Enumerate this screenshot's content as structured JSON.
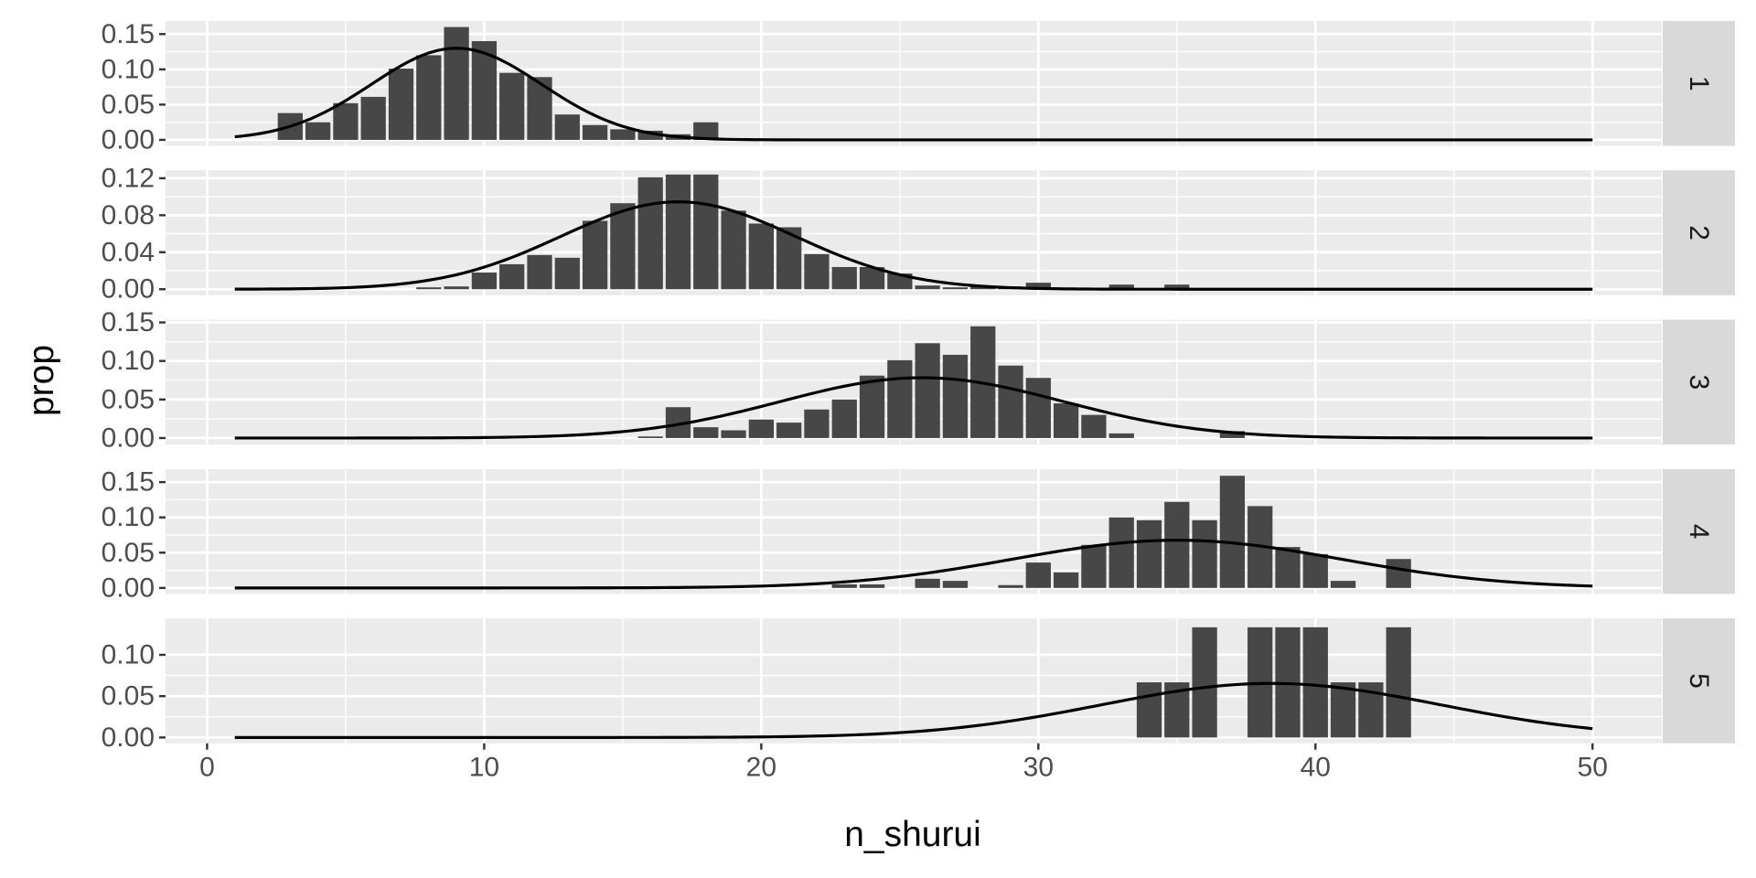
{
  "chart_data": {
    "type": "bar",
    "xlabel": "n_shurui",
    "ylabel": "prop",
    "xlim": [
      -1.5,
      52.5
    ],
    "x_ticks": [
      0,
      10,
      20,
      30,
      40,
      50
    ],
    "grid": true,
    "colors": {
      "panel_background": "#ebebeb",
      "grid": "#ffffff",
      "bar": "#474747",
      "curve": "#000000",
      "strip": "#d9d9d9",
      "tick_text": "#4d4d4d"
    },
    "panels": [
      {
        "strip_label": "1",
        "ylim": [
          -0.0085,
          0.1685
        ],
        "y_ticks": [
          0.0,
          0.05,
          0.1,
          0.15
        ],
        "y_tick_labels": [
          "0.00",
          "0.05",
          "0.10",
          "0.15"
        ],
        "bars": {
          "x": [
            3,
            4,
            5,
            6,
            7,
            8,
            9,
            10,
            11,
            12,
            13,
            14,
            15,
            16,
            17,
            18
          ],
          "values": [
            0.038,
            0.025,
            0.052,
            0.061,
            0.101,
            0.12,
            0.16,
            0.14,
            0.095,
            0.089,
            0.036,
            0.021,
            0.015,
            0.013,
            0.008,
            0.025
          ]
        },
        "curve": {
          "mean": 9.0,
          "sd": 3.07
        }
      },
      {
        "strip_label": "2",
        "ylim": [
          -0.0065,
          0.1285
        ],
        "y_ticks": [
          0.0,
          0.04,
          0.08,
          0.12
        ],
        "y_tick_labels": [
          "0.00",
          "0.04",
          "0.08",
          "0.12"
        ],
        "bars": {
          "x": [
            8,
            9,
            10,
            11,
            12,
            13,
            14,
            15,
            16,
            17,
            18,
            19,
            20,
            21,
            22,
            23,
            24,
            25,
            26,
            27,
            28,
            29,
            30,
            33,
            35
          ],
          "values": [
            0.002,
            0.003,
            0.018,
            0.027,
            0.037,
            0.034,
            0.074,
            0.093,
            0.121,
            0.124,
            0.124,
            0.085,
            0.071,
            0.067,
            0.038,
            0.024,
            0.024,
            0.017,
            0.004,
            0.002,
            0.003,
            0.003,
            0.007,
            0.005,
            0.005
          ]
        },
        "curve": {
          "mean": 17.0,
          "sd": 4.22
        }
      },
      {
        "strip_label": "3",
        "ylim": [
          -0.0085,
          0.1535
        ],
        "y_ticks": [
          0.0,
          0.05,
          0.1,
          0.15
        ],
        "y_tick_labels": [
          "0.00",
          "0.05",
          "0.10",
          "0.15"
        ],
        "bars": {
          "x": [
            16,
            17,
            18,
            19,
            20,
            21,
            22,
            23,
            24,
            25,
            26,
            27,
            28,
            29,
            30,
            31,
            32,
            33,
            37
          ],
          "values": [
            0.002,
            0.04,
            0.014,
            0.01,
            0.024,
            0.02,
            0.037,
            0.05,
            0.081,
            0.101,
            0.123,
            0.108,
            0.145,
            0.094,
            0.078,
            0.045,
            0.03,
            0.006,
            0.009
          ]
        },
        "curve": {
          "mean": 25.8,
          "sd": 5.1
        }
      },
      {
        "strip_label": "4",
        "ylim": [
          -0.0085,
          0.1685
        ],
        "y_ticks": [
          0.0,
          0.05,
          0.1,
          0.15
        ],
        "y_tick_labels": [
          "0.00",
          "0.05",
          "0.10",
          "0.15"
        ],
        "bars": {
          "x": [
            23,
            24,
            26,
            27,
            29,
            30,
            31,
            32,
            33,
            34,
            35,
            36,
            37,
            38,
            39,
            40,
            41,
            43
          ],
          "values": [
            0.005,
            0.005,
            0.013,
            0.01,
            0.004,
            0.036,
            0.022,
            0.061,
            0.1,
            0.096,
            0.122,
            0.096,
            0.159,
            0.116,
            0.058,
            0.048,
            0.01,
            0.041
          ]
        },
        "curve": {
          "mean": 35.0,
          "sd": 5.9
        }
      },
      {
        "strip_label": "5",
        "ylim": [
          -0.007,
          0.144
        ],
        "y_ticks": [
          0.0,
          0.05,
          0.1
        ],
        "y_tick_labels": [
          "0.00",
          "0.05",
          "0.10"
        ],
        "bars": {
          "x": [
            34,
            35,
            36,
            37,
            38,
            39,
            40,
            41,
            42,
            43
          ],
          "values": [
            0.0667,
            0.0667,
            0.1333,
            0.0,
            0.1333,
            0.1333,
            0.1333,
            0.0667,
            0.0667,
            0.1333
          ]
        },
        "curve": {
          "mean": 38.4,
          "sd": 6.1
        }
      }
    ]
  }
}
